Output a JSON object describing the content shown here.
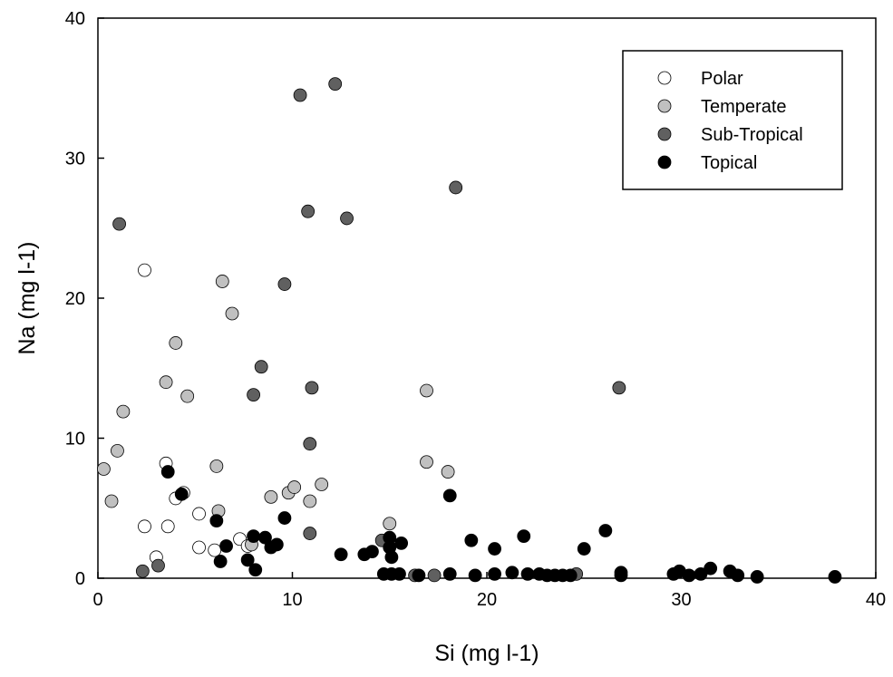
{
  "chart_data": {
    "type": "scatter",
    "title": "",
    "xlabel": "Si (mg l-1)",
    "ylabel": "Na (mg l-1)",
    "xlim": [
      0,
      40
    ],
    "ylim": [
      0,
      40
    ],
    "xticks": [
      0,
      10,
      20,
      30,
      40
    ],
    "yticks": [
      0,
      10,
      20,
      30,
      40
    ],
    "grid": false,
    "legend_position": "top-right",
    "series": [
      {
        "name": "Polar",
        "color": "#ffffff",
        "points": [
          [
            2.4,
            22.0
          ],
          [
            3.5,
            8.2
          ],
          [
            4.0,
            5.7
          ],
          [
            4.4,
            6.1
          ],
          [
            2.4,
            3.7
          ],
          [
            3.6,
            3.7
          ],
          [
            3.0,
            1.5
          ],
          [
            5.2,
            4.6
          ],
          [
            5.2,
            2.2
          ],
          [
            6.0,
            2.0
          ],
          [
            7.3,
            2.8
          ],
          [
            7.7,
            2.3
          ]
        ]
      },
      {
        "name": "Temperate",
        "color": "#c0c0c0",
        "points": [
          [
            0.3,
            7.8
          ],
          [
            0.7,
            5.5
          ],
          [
            1.0,
            9.1
          ],
          [
            1.3,
            11.9
          ],
          [
            3.5,
            14.0
          ],
          [
            4.0,
            16.8
          ],
          [
            4.6,
            13.0
          ],
          [
            6.4,
            21.2
          ],
          [
            6.9,
            18.9
          ],
          [
            6.1,
            8.0
          ],
          [
            6.2,
            4.8
          ],
          [
            8.9,
            5.8
          ],
          [
            9.8,
            6.1
          ],
          [
            10.1,
            6.5
          ],
          [
            10.9,
            5.5
          ],
          [
            11.5,
            6.7
          ],
          [
            15.0,
            3.9
          ],
          [
            16.9,
            13.4
          ],
          [
            16.9,
            8.3
          ],
          [
            18.0,
            7.6
          ],
          [
            7.9,
            2.4
          ]
        ]
      },
      {
        "name": "Sub-Tropical",
        "color": "#606060",
        "points": [
          [
            1.1,
            25.3
          ],
          [
            2.3,
            0.5
          ],
          [
            3.1,
            0.9
          ],
          [
            8.0,
            13.1
          ],
          [
            8.4,
            15.1
          ],
          [
            9.6,
            21.0
          ],
          [
            10.4,
            34.5
          ],
          [
            10.8,
            26.2
          ],
          [
            11.0,
            13.6
          ],
          [
            10.9,
            9.6
          ],
          [
            10.9,
            3.2
          ],
          [
            12.2,
            35.3
          ],
          [
            12.8,
            25.7
          ],
          [
            18.4,
            27.9
          ],
          [
            26.8,
            13.6
          ],
          [
            14.6,
            2.7
          ],
          [
            16.3,
            0.2
          ],
          [
            17.3,
            0.2
          ],
          [
            24.6,
            0.3
          ]
        ]
      },
      {
        "name": "Topical",
        "color": "#000000",
        "points": [
          [
            3.6,
            7.6
          ],
          [
            4.3,
            6.0
          ],
          [
            6.1,
            4.1
          ],
          [
            6.3,
            1.2
          ],
          [
            6.6,
            2.3
          ],
          [
            8.0,
            3.0
          ],
          [
            8.1,
            0.6
          ],
          [
            7.7,
            1.3
          ],
          [
            8.6,
            2.9
          ],
          [
            8.9,
            2.2
          ],
          [
            9.2,
            2.4
          ],
          [
            9.6,
            4.3
          ],
          [
            12.5,
            1.7
          ],
          [
            13.7,
            1.7
          ],
          [
            14.1,
            1.9
          ],
          [
            14.7,
            0.3
          ],
          [
            15.0,
            2.9
          ],
          [
            15.0,
            2.2
          ],
          [
            15.1,
            1.5
          ],
          [
            15.6,
            2.5
          ],
          [
            15.1,
            0.3
          ],
          [
            15.5,
            0.3
          ],
          [
            16.5,
            0.2
          ],
          [
            18.1,
            5.9
          ],
          [
            18.1,
            0.3
          ],
          [
            19.2,
            2.7
          ],
          [
            19.4,
            0.2
          ],
          [
            20.4,
            2.1
          ],
          [
            20.4,
            0.3
          ],
          [
            21.3,
            0.4
          ],
          [
            21.9,
            3.0
          ],
          [
            22.1,
            0.3
          ],
          [
            22.7,
            0.3
          ],
          [
            23.1,
            0.2
          ],
          [
            23.5,
            0.2
          ],
          [
            23.9,
            0.2
          ],
          [
            24.3,
            0.2
          ],
          [
            25.0,
            2.1
          ],
          [
            26.1,
            3.4
          ],
          [
            26.9,
            0.4
          ],
          [
            26.9,
            0.2
          ],
          [
            29.6,
            0.3
          ],
          [
            29.9,
            0.5
          ],
          [
            30.4,
            0.2
          ],
          [
            31.0,
            0.3
          ],
          [
            31.5,
            0.7
          ],
          [
            32.5,
            0.5
          ],
          [
            32.9,
            0.2
          ],
          [
            33.9,
            0.1
          ],
          [
            37.9,
            0.1
          ]
        ]
      }
    ]
  }
}
